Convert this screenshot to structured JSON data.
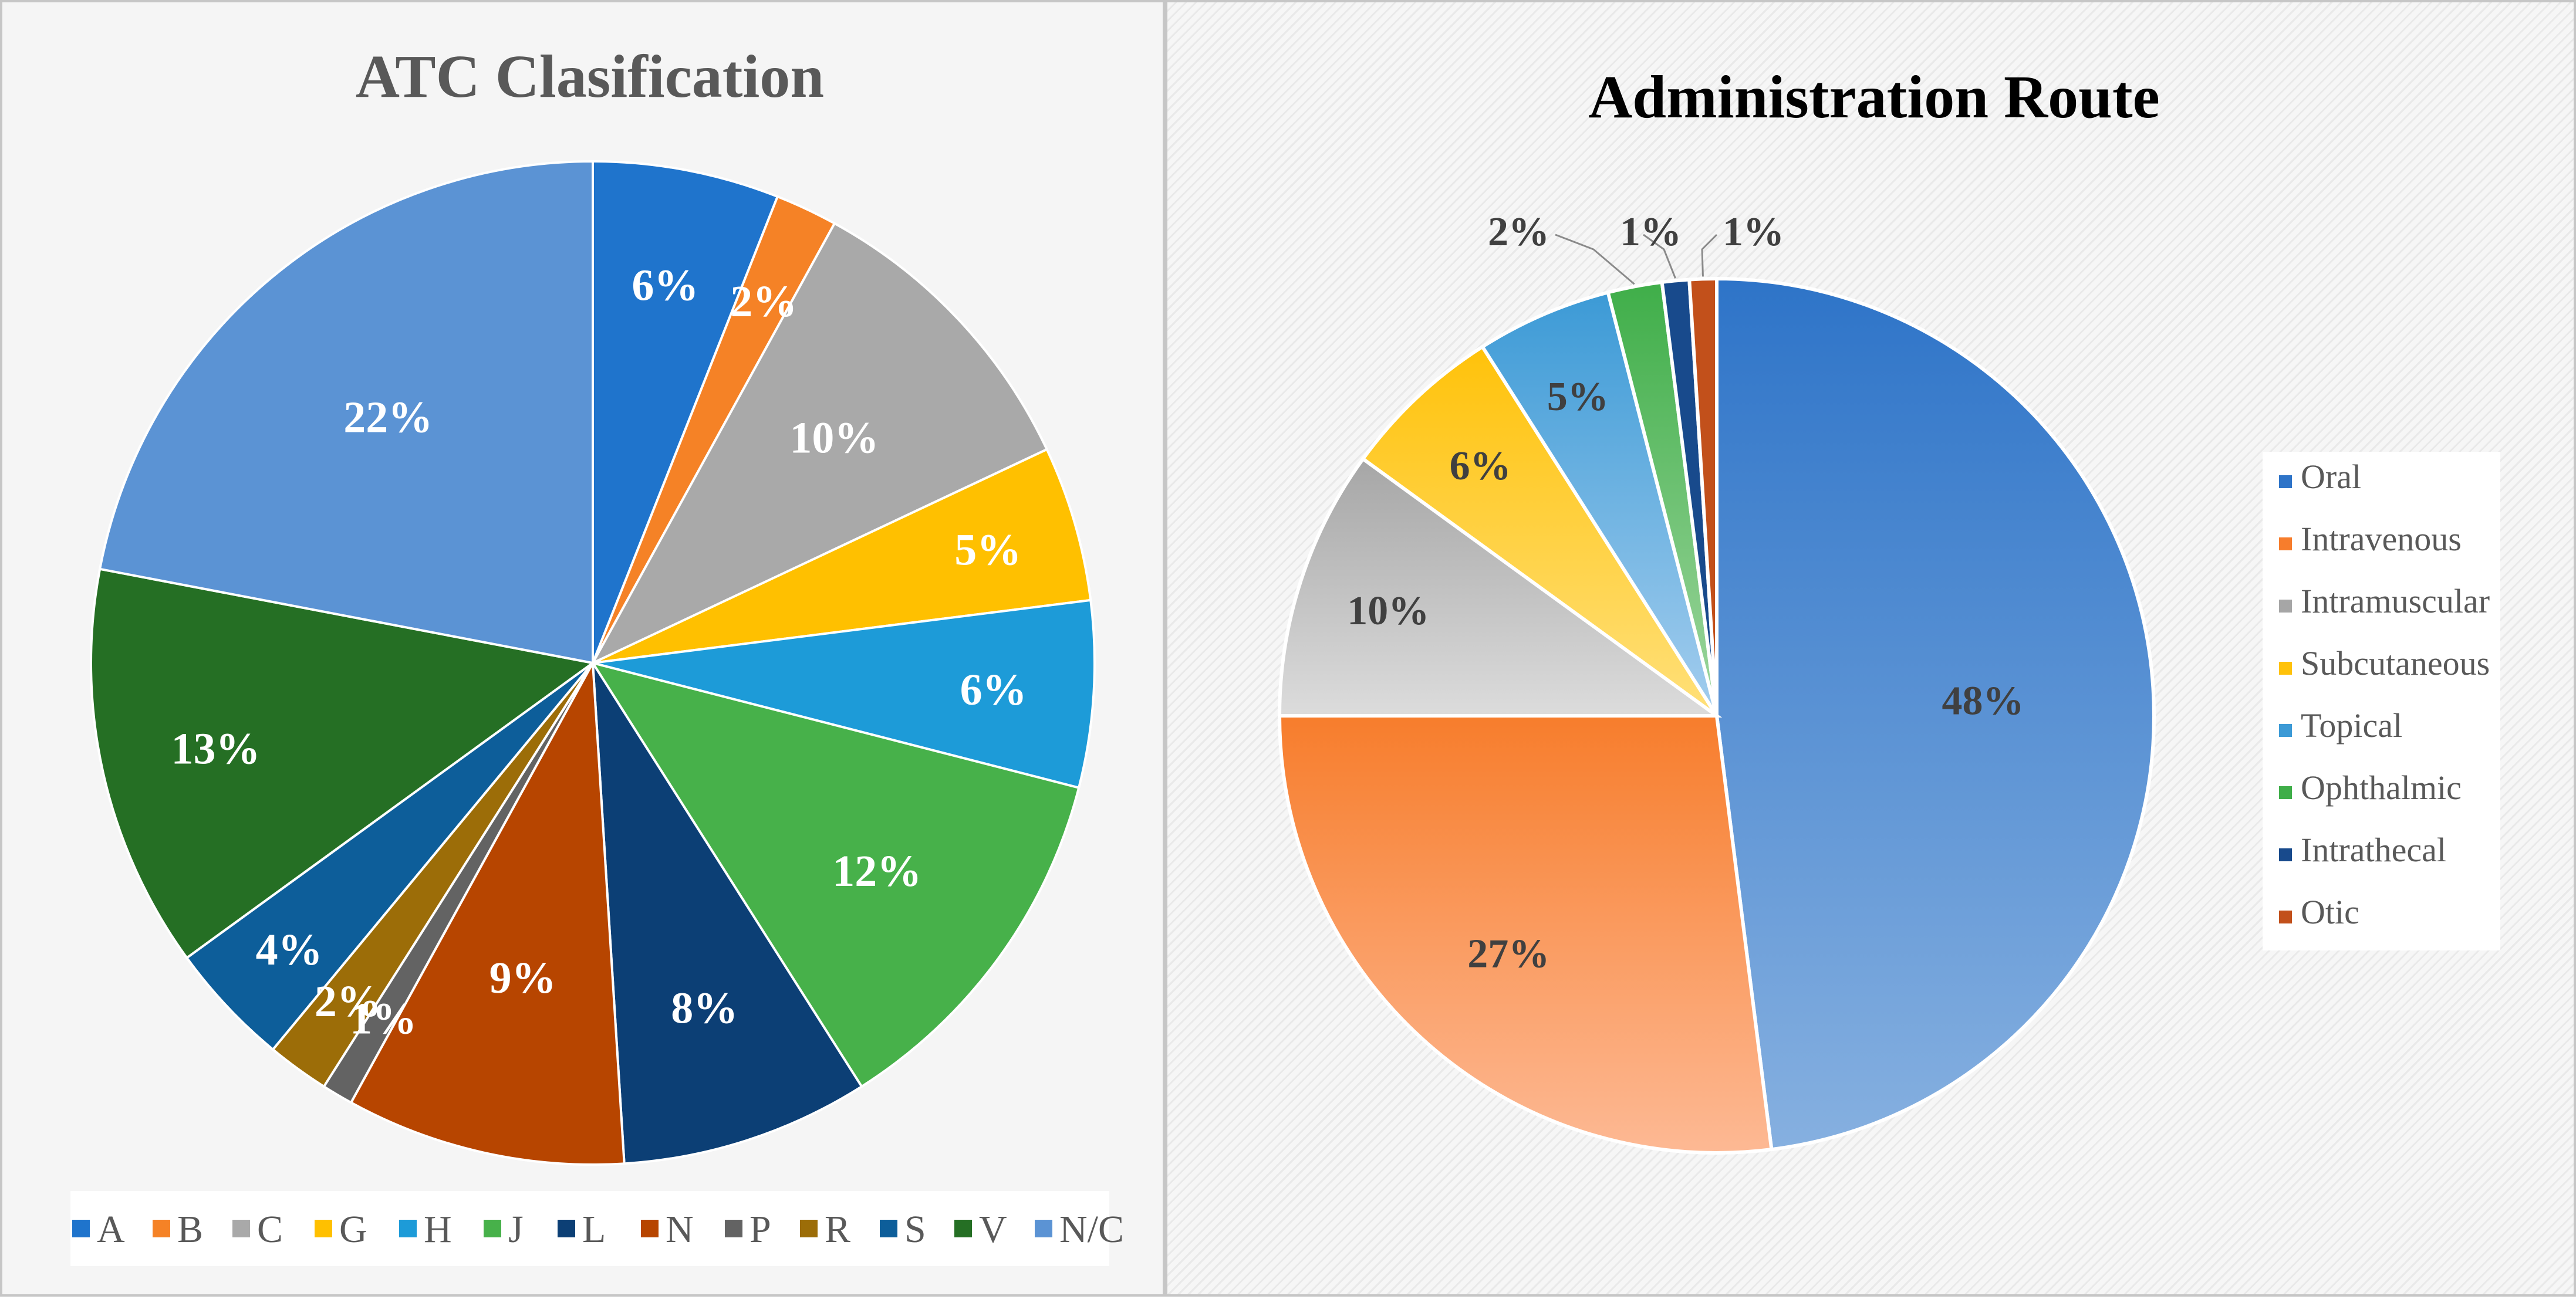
{
  "chart_data": [
    {
      "type": "pie",
      "title": "ATC Clasification",
      "unit": "%",
      "legend_position": "bottom",
      "categories": [
        "A",
        "B",
        "C",
        "G",
        "H",
        "J",
        "L",
        "N",
        "P",
        "R",
        "S",
        "V",
        "N/C"
      ],
      "values": [
        6,
        2,
        10,
        5,
        6,
        12,
        8,
        9,
        1,
        2,
        4,
        13,
        22
      ],
      "colors": [
        "#1f74cc",
        "#f58226",
        "#a9a9a9",
        "#ffc000",
        "#1d9bd8",
        "#47b14a",
        "#0c3f75",
        "#b74500",
        "#636363",
        "#9c6d08",
        "#0d5e9a",
        "#256f24",
        "#5b93d4"
      ],
      "label_color": "#ffffff"
    },
    {
      "type": "pie",
      "title": "Administration Route",
      "unit": "%",
      "legend_position": "right",
      "categories": [
        "Oral",
        "Intravenous",
        "Intramuscular",
        "Subcutaneous",
        "Topical",
        "Ophthalmic",
        "Intrathecal",
        "Otic"
      ],
      "values": [
        48,
        27,
        10,
        6,
        5,
        2,
        1,
        1
      ],
      "colors": [
        "#2e74c8",
        "#f77d2c",
        "#a6a6a6",
        "#ffc20a",
        "#3c9ad6",
        "#3fae49",
        "#184a8c",
        "#c2501b"
      ],
      "gradient_light": [
        "#86b0e0",
        "#fdb994",
        "#dcdcdc",
        "#ffe07a",
        "#a3cdee",
        "#9ed69e",
        "#184a8c",
        "#c2501b"
      ],
      "label_color": "#404040"
    }
  ]
}
